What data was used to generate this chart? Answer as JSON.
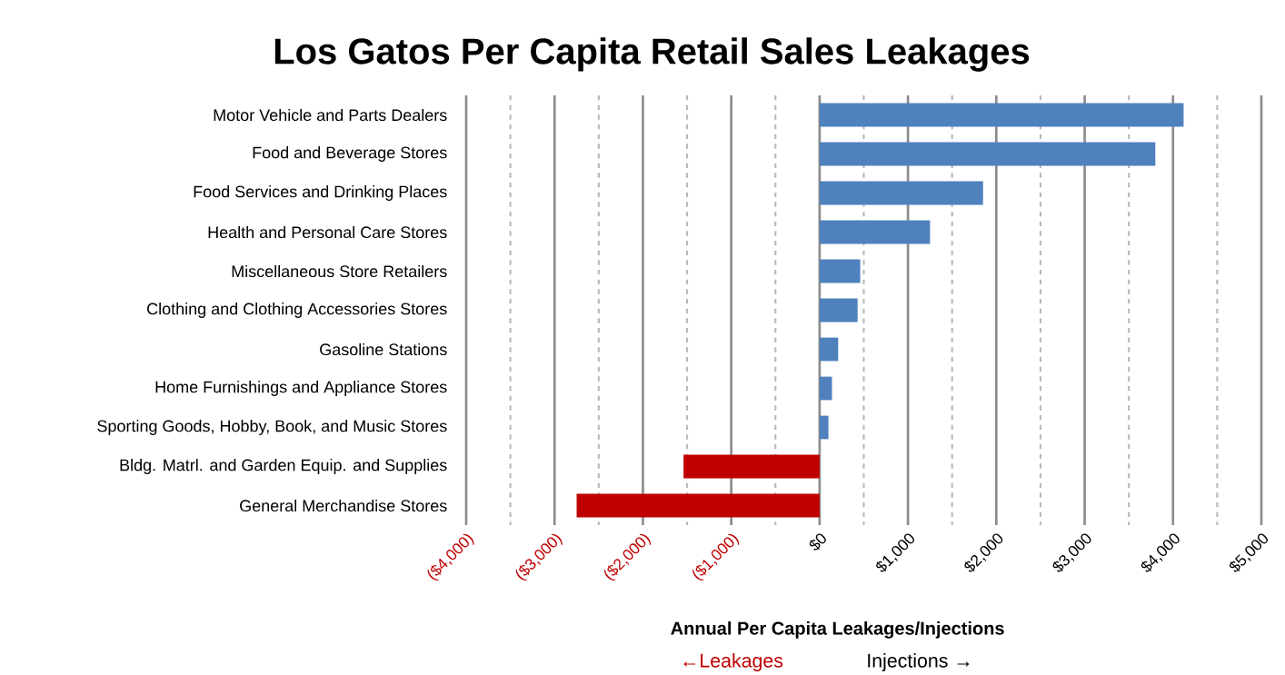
{
  "chart_data": {
    "type": "bar",
    "orientation": "horizontal",
    "title": "Los Gatos Per Capita Retail Sales Leakages",
    "categories": [
      "Motor Vehicle and Parts Dealers",
      "Food and Beverage Stores",
      "Food Services and Drinking Places",
      "Health and Personal Care Stores",
      "Miscellaneous Store Retailers",
      "Clothing and Clothing Accessories Stores",
      "Gasoline Stations",
      "Home Furnishings and Appliance Stores",
      "Sporting Goods, Hobby, Book, and Music Stores",
      "Bldg. Matrl. and Garden Equip. and Supplies",
      "General Merchandise Stores"
    ],
    "values": [
      4120,
      3800,
      1850,
      1250,
      460,
      430,
      210,
      140,
      100,
      -1540,
      -2750
    ],
    "colors": [
      "#4f81bd",
      "#4f81bd",
      "#4f81bd",
      "#4f81bd",
      "#4f81bd",
      "#4f81bd",
      "#4f81bd",
      "#4f81bd",
      "#4f81bd",
      "#c00000",
      "#c00000"
    ],
    "xlim": [
      -4000,
      5000
    ],
    "xticks": [
      {
        "value": -4000,
        "label": "($4,000)"
      },
      {
        "value": -3500,
        "label": null
      },
      {
        "value": -3000,
        "label": "($3,000)"
      },
      {
        "value": -2500,
        "label": null
      },
      {
        "value": -2000,
        "label": "($2,000)"
      },
      {
        "value": -1500,
        "label": null
      },
      {
        "value": -1000,
        "label": "($1,000)"
      },
      {
        "value": -500,
        "label": null
      },
      {
        "value": 0,
        "label": "$0"
      },
      {
        "value": 500,
        "label": null
      },
      {
        "value": 1000,
        "label": "$1,000"
      },
      {
        "value": 1500,
        "label": null
      },
      {
        "value": 2000,
        "label": "$2,000"
      },
      {
        "value": 2500,
        "label": null
      },
      {
        "value": 3000,
        "label": "$3,000"
      },
      {
        "value": 3500,
        "label": null
      },
      {
        "value": 4000,
        "label": "$4,000"
      },
      {
        "value": 4500,
        "label": null
      },
      {
        "value": 5000,
        "label": "$5,000"
      }
    ],
    "grid": "x",
    "xlabel": "Annual Per Capita Leakages/Injections",
    "annotations": [
      "←Leakages",
      "Injections →"
    ]
  }
}
